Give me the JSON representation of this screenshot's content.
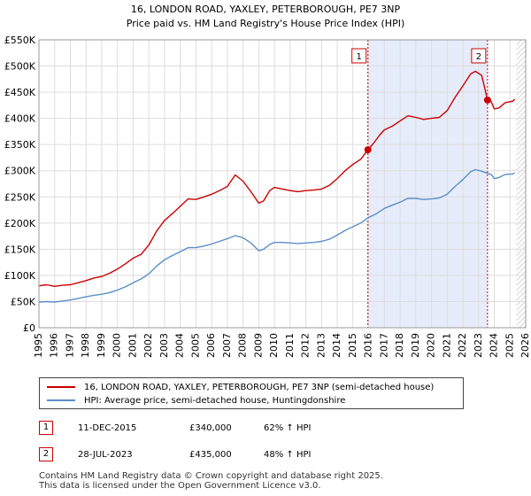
{
  "chart_data": {
    "type": "line",
    "title_line1": "16, LONDON ROAD, YAXLEY, PETERBOROUGH, PE7 3NP",
    "title_line2": "Price paid vs. HM Land Registry's House Price Index (HPI)",
    "xlim": [
      1995,
      2026
    ],
    "ylim": [
      0,
      550000
    ],
    "x_ticks": [
      1995,
      1996,
      1997,
      1998,
      1999,
      2000,
      2001,
      2002,
      2003,
      2004,
      2005,
      2006,
      2007,
      2008,
      2009,
      2010,
      2011,
      2012,
      2013,
      2014,
      2015,
      2016,
      2017,
      2018,
      2019,
      2020,
      2021,
      2022,
      2023,
      2024,
      2025,
      2026
    ],
    "y_ticks": [
      {
        "value": 0,
        "label": "£0"
      },
      {
        "value": 50000,
        "label": "£50K"
      },
      {
        "value": 100000,
        "label": "£100K"
      },
      {
        "value": 150000,
        "label": "£150K"
      },
      {
        "value": 200000,
        "label": "£200K"
      },
      {
        "value": 250000,
        "label": "£250K"
      },
      {
        "value": 300000,
        "label": "£300K"
      },
      {
        "value": 350000,
        "label": "£350K"
      },
      {
        "value": 400000,
        "label": "£400K"
      },
      {
        "value": 450000,
        "label": "£450K"
      },
      {
        "value": 500000,
        "label": "£500K"
      },
      {
        "value": 550000,
        "label": "£550K"
      }
    ],
    "grid": true,
    "shaded_region": [
      2015.95,
      2023.57
    ],
    "future_hatch_start": 2025.4,
    "series": [
      {
        "name": "16, LONDON ROAD, YAXLEY, PETERBOROUGH, PE7 3NP (semi-detached house)",
        "color": "#cc0000",
        "points": [
          [
            1995.0,
            80000
          ],
          [
            1995.5,
            82000
          ],
          [
            1996.0,
            79000
          ],
          [
            1996.5,
            81000
          ],
          [
            1997.0,
            82000
          ],
          [
            1997.5,
            86000
          ],
          [
            1998.0,
            90000
          ],
          [
            1998.5,
            95000
          ],
          [
            1999.0,
            98000
          ],
          [
            1999.5,
            104000
          ],
          [
            2000.0,
            112000
          ],
          [
            2000.5,
            122000
          ],
          [
            2001.0,
            133000
          ],
          [
            2001.5,
            140000
          ],
          [
            2002.0,
            158000
          ],
          [
            2002.5,
            185000
          ],
          [
            2003.0,
            205000
          ],
          [
            2003.5,
            218000
          ],
          [
            2004.0,
            232000
          ],
          [
            2004.5,
            246000
          ],
          [
            2005.0,
            245000
          ],
          [
            2005.5,
            250000
          ],
          [
            2006.0,
            255000
          ],
          [
            2006.5,
            262000
          ],
          [
            2007.0,
            270000
          ],
          [
            2007.5,
            292000
          ],
          [
            2008.0,
            280000
          ],
          [
            2008.5,
            260000
          ],
          [
            2009.0,
            238000
          ],
          [
            2009.3,
            242000
          ],
          [
            2009.7,
            262000
          ],
          [
            2010.0,
            268000
          ],
          [
            2010.5,
            265000
          ],
          [
            2011.0,
            262000
          ],
          [
            2011.5,
            260000
          ],
          [
            2012.0,
            262000
          ],
          [
            2012.5,
            263000
          ],
          [
            2013.0,
            265000
          ],
          [
            2013.5,
            272000
          ],
          [
            2014.0,
            285000
          ],
          [
            2014.5,
            300000
          ],
          [
            2015.0,
            312000
          ],
          [
            2015.5,
            322000
          ],
          [
            2015.95,
            340000
          ],
          [
            2016.3,
            352000
          ],
          [
            2016.7,
            368000
          ],
          [
            2017.0,
            378000
          ],
          [
            2017.5,
            385000
          ],
          [
            2018.0,
            395000
          ],
          [
            2018.5,
            405000
          ],
          [
            2019.0,
            402000
          ],
          [
            2019.5,
            398000
          ],
          [
            2020.0,
            400000
          ],
          [
            2020.5,
            402000
          ],
          [
            2021.0,
            415000
          ],
          [
            2021.5,
            440000
          ],
          [
            2022.0,
            462000
          ],
          [
            2022.5,
            485000
          ],
          [
            2022.8,
            490000
          ],
          [
            2023.2,
            482000
          ],
          [
            2023.57,
            435000
          ],
          [
            2023.8,
            432000
          ],
          [
            2024.0,
            418000
          ],
          [
            2024.3,
            420000
          ],
          [
            2024.7,
            430000
          ],
          [
            2025.2,
            433000
          ],
          [
            2025.3,
            437000
          ]
        ]
      },
      {
        "name": "HPI: Average price, semi-detached house, Huntingdonshire",
        "color": "#5b8ec9",
        "points": [
          [
            1995.0,
            49000
          ],
          [
            1995.5,
            50000
          ],
          [
            1996.0,
            49000
          ],
          [
            1996.5,
            51000
          ],
          [
            1997.0,
            53000
          ],
          [
            1997.5,
            56000
          ],
          [
            1998.0,
            59000
          ],
          [
            1998.5,
            62000
          ],
          [
            1999.0,
            64000
          ],
          [
            1999.5,
            67000
          ],
          [
            2000.0,
            72000
          ],
          [
            2000.5,
            78000
          ],
          [
            2001.0,
            86000
          ],
          [
            2001.5,
            93000
          ],
          [
            2002.0,
            103000
          ],
          [
            2002.5,
            118000
          ],
          [
            2003.0,
            130000
          ],
          [
            2003.5,
            138000
          ],
          [
            2004.0,
            145000
          ],
          [
            2004.5,
            153000
          ],
          [
            2005.0,
            153000
          ],
          [
            2005.5,
            156000
          ],
          [
            2006.0,
            160000
          ],
          [
            2006.5,
            165000
          ],
          [
            2007.0,
            170000
          ],
          [
            2007.5,
            176000
          ],
          [
            2008.0,
            172000
          ],
          [
            2008.5,
            162000
          ],
          [
            2009.0,
            147000
          ],
          [
            2009.3,
            150000
          ],
          [
            2009.7,
            159000
          ],
          [
            2010.0,
            163000
          ],
          [
            2010.5,
            163000
          ],
          [
            2011.0,
            162000
          ],
          [
            2011.5,
            161000
          ],
          [
            2012.0,
            162000
          ],
          [
            2012.5,
            163000
          ],
          [
            2013.0,
            165000
          ],
          [
            2013.5,
            169000
          ],
          [
            2014.0,
            177000
          ],
          [
            2014.5,
            186000
          ],
          [
            2015.0,
            193000
          ],
          [
            2015.5,
            200000
          ],
          [
            2015.95,
            210000
          ],
          [
            2016.5,
            218000
          ],
          [
            2017.0,
            228000
          ],
          [
            2017.5,
            234000
          ],
          [
            2018.0,
            240000
          ],
          [
            2018.5,
            247000
          ],
          [
            2019.0,
            247000
          ],
          [
            2019.5,
            245000
          ],
          [
            2020.0,
            246000
          ],
          [
            2020.5,
            248000
          ],
          [
            2021.0,
            255000
          ],
          [
            2021.5,
            270000
          ],
          [
            2022.0,
            283000
          ],
          [
            2022.5,
            298000
          ],
          [
            2022.8,
            302000
          ],
          [
            2023.2,
            299000
          ],
          [
            2023.57,
            295000
          ],
          [
            2023.8,
            293000
          ],
          [
            2024.0,
            285000
          ],
          [
            2024.3,
            287000
          ],
          [
            2024.7,
            293000
          ],
          [
            2025.2,
            294000
          ],
          [
            2025.3,
            296000
          ]
        ]
      }
    ],
    "sales": [
      {
        "label": "1",
        "x": 2015.95,
        "y": 340000
      },
      {
        "label": "2",
        "x": 2023.57,
        "y": 435000
      }
    ]
  },
  "legend": {
    "red_label": "16, LONDON ROAD, YAXLEY, PETERBOROUGH, PE7 3NP (semi-detached house)",
    "blue_label": "HPI: Average price, semi-detached house, Huntingdonshire"
  },
  "sales_table": [
    {
      "num": "1",
      "date": "11-DEC-2015",
      "price": "£340,000",
      "hpi": "62% ↑ HPI"
    },
    {
      "num": "2",
      "date": "28-JUL-2023",
      "price": "£435,000",
      "hpi": "48% ↑ HPI"
    }
  ],
  "footer": {
    "line1": "Contains HM Land Registry data © Crown copyright and database right 2025.",
    "line2": "This data is licensed under the Open Government Licence v3.0."
  }
}
